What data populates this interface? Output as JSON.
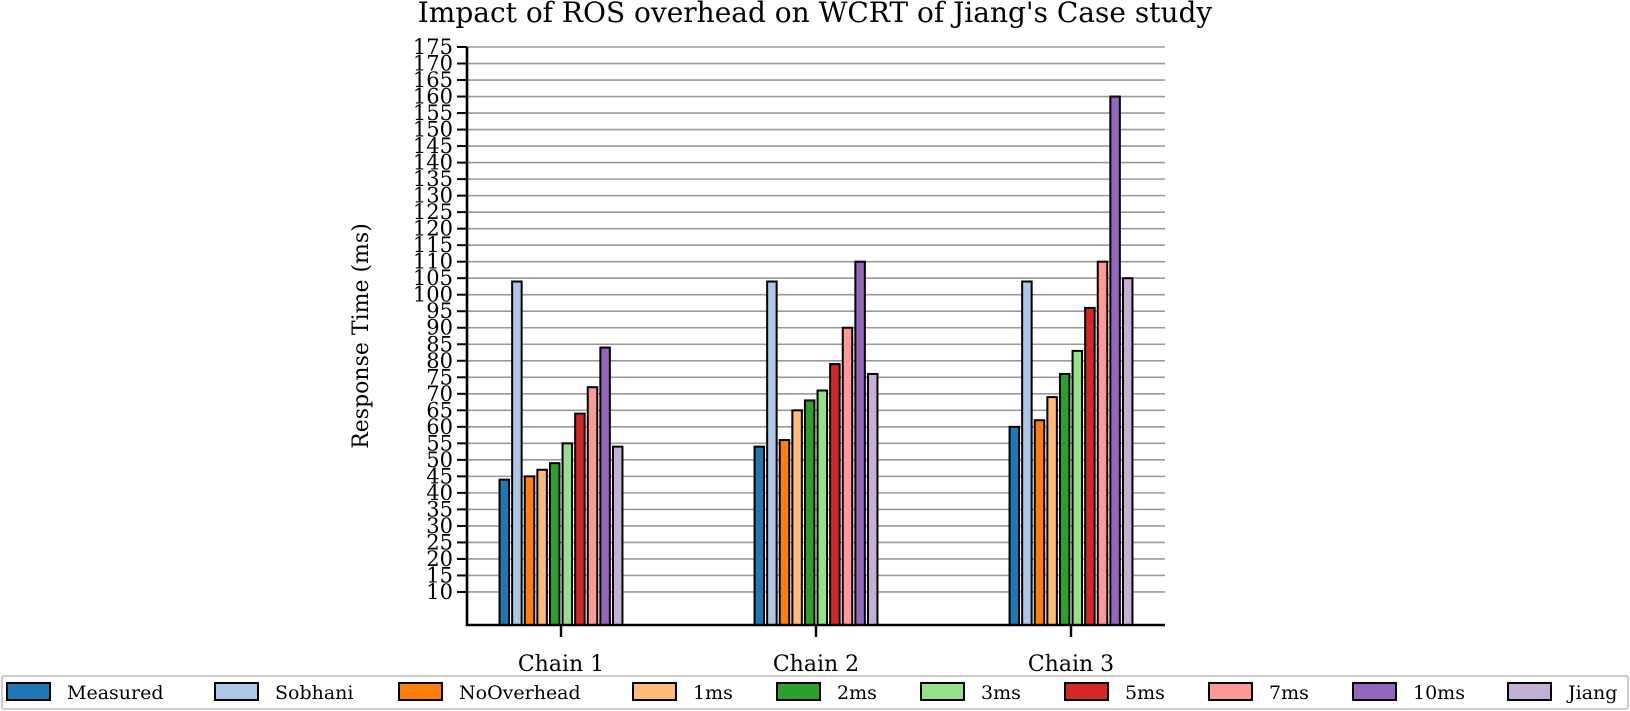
{
  "chart_data": {
    "type": "bar",
    "title": "Impact of ROS overhead on WCRT of Jiang's Case study",
    "xlabel": "",
    "ylabel": "Response Time (ms)",
    "ylim": [
      0,
      175
    ],
    "yticks": [
      10,
      15,
      20,
      25,
      30,
      35,
      40,
      45,
      50,
      55,
      60,
      65,
      70,
      75,
      80,
      85,
      90,
      95,
      100,
      105,
      110,
      115,
      120,
      125,
      130,
      135,
      140,
      145,
      150,
      155,
      160,
      165,
      170,
      175
    ],
    "grid": true,
    "legend_placement": "bottom",
    "categories": [
      "Chain 1",
      "Chain 2",
      "Chain 3"
    ],
    "series": [
      {
        "name": "Measured",
        "color": "#1f77b4",
        "values": [
          44,
          54,
          60
        ]
      },
      {
        "name": "Sobhani",
        "color": "#aec7e8",
        "values": [
          104,
          104,
          104
        ]
      },
      {
        "name": "NoOverhead",
        "color": "#ff7f0e",
        "values": [
          45,
          56,
          62
        ]
      },
      {
        "name": "1ms",
        "color": "#ffbb78",
        "values": [
          47,
          65,
          69
        ]
      },
      {
        "name": "2ms",
        "color": "#2ca02c",
        "values": [
          49,
          68,
          76
        ]
      },
      {
        "name": "3ms",
        "color": "#98df8a",
        "values": [
          55,
          71,
          83
        ]
      },
      {
        "name": "5ms",
        "color": "#d62728",
        "values": [
          64,
          79,
          96
        ]
      },
      {
        "name": "7ms",
        "color": "#ff9896",
        "values": [
          72,
          90,
          110
        ]
      },
      {
        "name": "10ms",
        "color": "#9467bd",
        "values": [
          84,
          110,
          160
        ]
      },
      {
        "name": "Jiang",
        "color": "#c5b0d5",
        "values": [
          54,
          76,
          105
        ]
      }
    ]
  }
}
